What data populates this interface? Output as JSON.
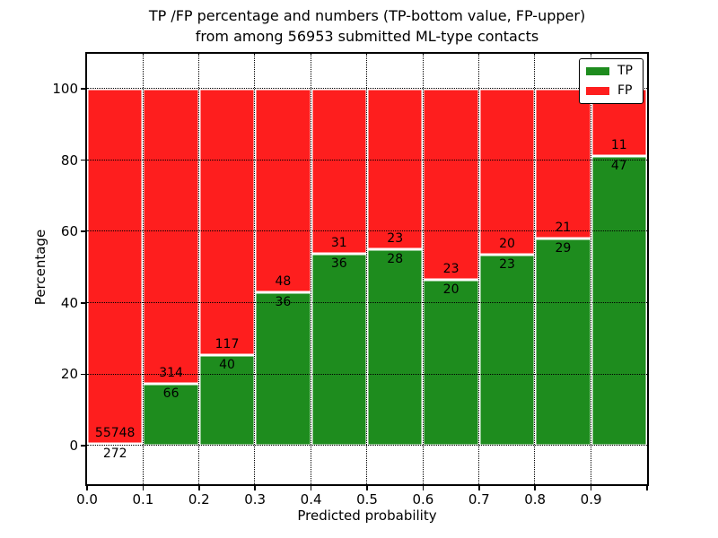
{
  "title": {
    "line1": "TP /FP percentage and numbers (TP-bottom value, FP-upper)",
    "line2": "from among 56953 submitted ML-type contacts"
  },
  "axes": {
    "xlabel": "Predicted probability",
    "ylabel": "Percentage"
  },
  "chart_data": {
    "type": "bar",
    "stacked": true,
    "normalized_to_percent": true,
    "title": "TP /FP percentage and numbers (TP-bottom value, FP-upper) from among 56953 submitted ML-type contacts",
    "xlabel": "Predicted probability",
    "ylabel": "Percentage",
    "total_submitted": 56953,
    "bin_edges": [
      0.0,
      0.1,
      0.2,
      0.3,
      0.4,
      0.5,
      0.6,
      0.7,
      0.8,
      0.9,
      1.0
    ],
    "x_tick_labels": [
      "0.0",
      "0.1",
      "0.2",
      "0.3",
      "0.4",
      "0.5",
      "0.6",
      "0.7",
      "0.8",
      "0.9"
    ],
    "y_tick_values": [
      0,
      20,
      40,
      60,
      80,
      100
    ],
    "ylim": [
      -11,
      109
    ],
    "grid": "dotted",
    "legend_position": "upper right",
    "series": [
      {
        "name": "TP",
        "color": "#1e8c1e",
        "position": "bottom",
        "counts": [
          272,
          66,
          40,
          36,
          36,
          28,
          20,
          23,
          29,
          47
        ]
      },
      {
        "name": "FP",
        "color": "#fe1e1e",
        "position": "top",
        "counts": [
          55748,
          314,
          117,
          48,
          31,
          23,
          23,
          20,
          21,
          11
        ]
      }
    ],
    "tp_percent_by_bin": [
      0.49,
      17.37,
      25.48,
      42.86,
      53.73,
      54.9,
      46.51,
      53.49,
      58.0,
      81.03
    ]
  }
}
